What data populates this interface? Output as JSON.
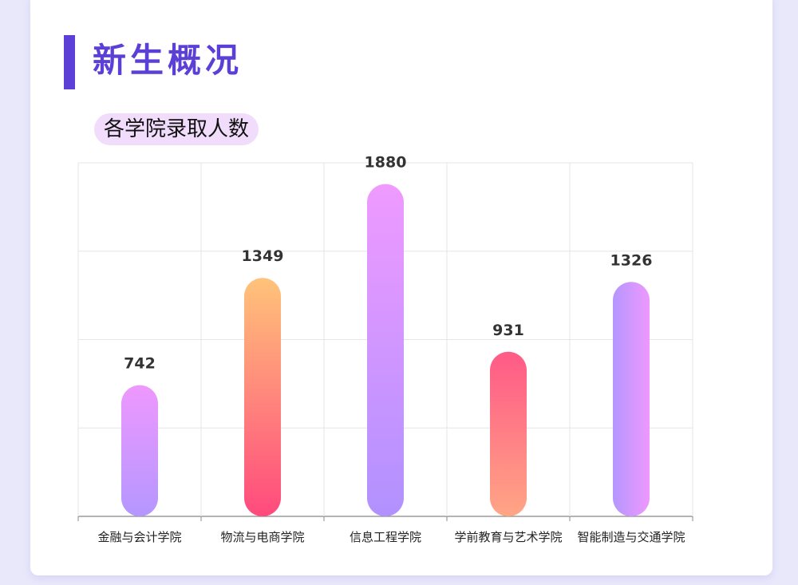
{
  "page": {
    "title": "新生概况"
  },
  "chart_data": {
    "type": "bar",
    "title": "各学院录取人数",
    "xlabel": "",
    "ylabel": "",
    "categories": [
      "金融与会计学院",
      "物流与电商学院",
      "信息工程学院",
      "学前教育与艺术学院",
      "智能制造与交通学院"
    ],
    "values": [
      742,
      1349,
      1880,
      931,
      1326
    ],
    "ylim": [
      0,
      2000
    ],
    "grid": true,
    "bar_gradients": [
      [
        "#b497ff",
        "#ee98fe"
      ],
      [
        "#ff4a7d",
        "#ffc37a"
      ],
      [
        "#b191ff",
        "#ef9aff"
      ],
      [
        "#ffa585",
        "#ff5a86"
      ],
      [
        "#b497ff",
        "#ee98fe"
      ]
    ],
    "bar_gradient_directions": [
      "vertical",
      "vertical",
      "vertical",
      "vertical",
      "horizontal"
    ]
  }
}
